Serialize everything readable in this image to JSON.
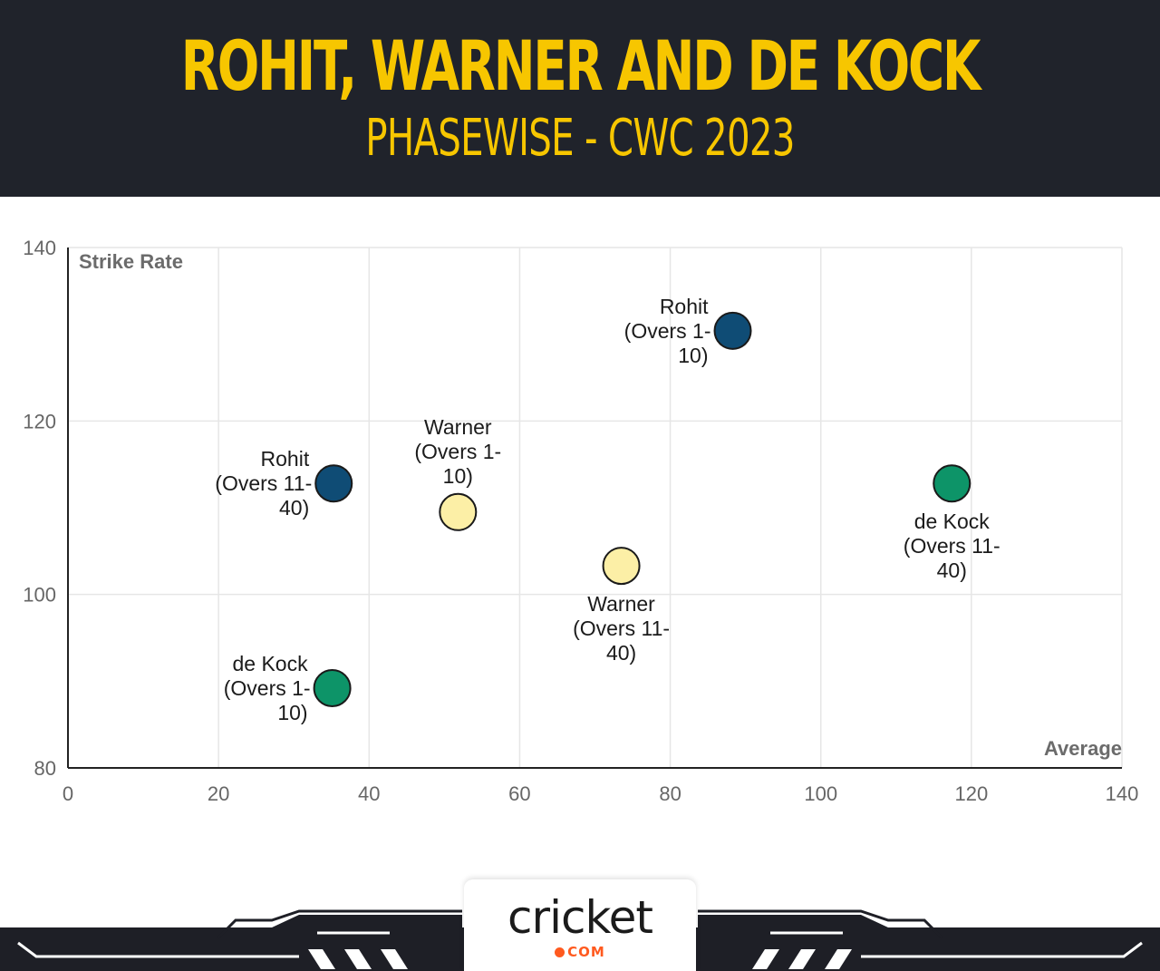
{
  "header": {
    "title": "ROHIT, WARNER AND DE KOCK",
    "subtitle": "PHASEWISE - CWC 2023"
  },
  "colors": {
    "header_bg": "#20232b",
    "title": "#f7c600",
    "rohit": "#0f4c75",
    "warner": "#fcefa6",
    "de_kock": "#0d9468",
    "grid": "#e6e6e6",
    "axis": "#222222"
  },
  "chart_data": {
    "type": "scatter",
    "xlabel": "Average",
    "ylabel": "Strike Rate",
    "xlim": [
      0,
      140
    ],
    "ylim": [
      80,
      140
    ],
    "xticks": [
      0,
      20,
      40,
      60,
      80,
      100,
      120,
      140
    ],
    "yticks": [
      80,
      100,
      120,
      140
    ],
    "grid": true,
    "points": [
      {
        "player": "Rohit",
        "phase": "Overs 1-10",
        "label": [
          "Rohit",
          "(Overs 1-",
          "10)"
        ],
        "x": 88.3,
        "y": 130.4,
        "color": "#0f4c75",
        "label_side": "left"
      },
      {
        "player": "Rohit",
        "phase": "Overs 11-40",
        "label": [
          "Rohit",
          "(Overs 11-",
          "40)"
        ],
        "x": 35.3,
        "y": 112.8,
        "color": "#0f4c75",
        "label_side": "left"
      },
      {
        "player": "Warner",
        "phase": "Overs 1-10",
        "label": [
          "Warner",
          "(Overs 1-",
          "10)"
        ],
        "x": 51.8,
        "y": 109.5,
        "color": "#fcefa6",
        "label_side": "above"
      },
      {
        "player": "Warner",
        "phase": "Overs 11-40",
        "label": [
          "Warner",
          "(Overs 11-",
          "40)"
        ],
        "x": 73.5,
        "y": 103.3,
        "color": "#fcefa6",
        "label_side": "below"
      },
      {
        "player": "de Kock",
        "phase": "Overs 1-10",
        "label": [
          "de Kock",
          "(Overs 1-",
          "10)"
        ],
        "x": 35.1,
        "y": 89.2,
        "color": "#0d9468",
        "label_side": "left"
      },
      {
        "player": "de Kock",
        "phase": "Overs 11-40",
        "label": [
          "de Kock",
          "(Overs 11-",
          "40)"
        ],
        "x": 117.4,
        "y": 112.8,
        "color": "#0d9468",
        "label_side": "below"
      }
    ]
  },
  "logo": {
    "word": "cricket",
    "suffix": "COM"
  }
}
